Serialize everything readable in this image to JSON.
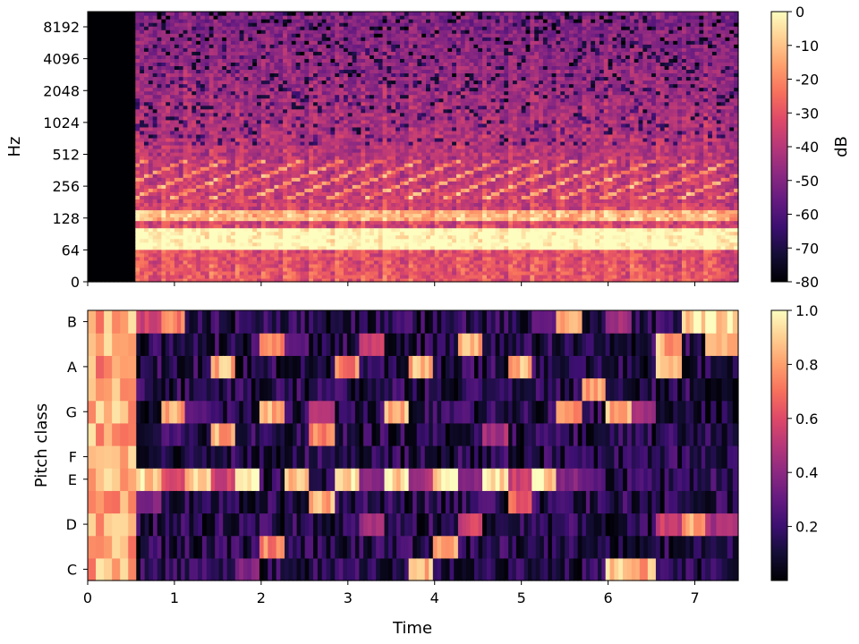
{
  "chart_data": [
    {
      "type": "heatmap",
      "name": "spectrogram",
      "ylabel": "Hz",
      "yscale": "log",
      "yticks": [
        "0",
        "64",
        "128",
        "256",
        "512",
        "1024",
        "2048",
        "4096",
        "8192"
      ],
      "xrange": [
        0,
        7.5
      ],
      "colormap": "magma",
      "colorbar": {
        "label": "dB",
        "ticks": [
          "0",
          "-10",
          "-20",
          "-30",
          "-40",
          "-50",
          "-60",
          "-70",
          "-80"
        ],
        "range": [
          -80,
          0
        ]
      },
      "note_onsets_s": [
        0.56,
        0.85,
        1.12,
        1.42,
        1.7,
        1.98,
        2.27,
        2.55,
        2.85,
        3.13,
        3.42,
        3.7,
        3.98,
        4.27,
        4.55,
        4.85,
        5.12,
        5.4,
        5.7,
        5.97,
        6.27,
        6.55,
        6.85,
        7.12
      ],
      "silence_until_s": 0.56
    },
    {
      "type": "heatmap",
      "name": "chromagram",
      "xlabel": "Time",
      "ylabel": "Pitch class",
      "yticks": [
        "C",
        "D",
        "E",
        "F",
        "G",
        "A",
        "B"
      ],
      "xticks": [
        "0",
        "1",
        "2",
        "3",
        "4",
        "5",
        "6",
        "7"
      ],
      "xrange": [
        0,
        7.5
      ],
      "pitch_classes": [
        "C",
        "C#",
        "D",
        "D#",
        "E",
        "F",
        "F#",
        "G",
        "G#",
        "A",
        "A#",
        "B"
      ],
      "colormap": "magma",
      "colorbar": {
        "ticks": [
          "1.0",
          "0.8",
          "0.6",
          "0.4",
          "0.2"
        ],
        "range": [
          0,
          1
        ]
      },
      "segments": [
        {
          "t0": 0.56,
          "t1": 0.85,
          "peaks": {
            "E": 1.0,
            "D#": 0.4,
            "B": 0.6
          }
        },
        {
          "t0": 0.85,
          "t1": 1.12,
          "peaks": {
            "G": 0.9,
            "E": 0.6,
            "B": 0.8
          }
        },
        {
          "t0": 1.12,
          "t1": 1.42,
          "peaks": {
            "E": 1.0,
            "G": 0.3
          }
        },
        {
          "t0": 1.42,
          "t1": 1.7,
          "peaks": {
            "A": 0.9,
            "F#": 0.9,
            "E": 0.6
          }
        },
        {
          "t0": 1.7,
          "t1": 1.98,
          "peaks": {
            "E": 1.0,
            "C": 0.4
          }
        },
        {
          "t0": 1.98,
          "t1": 2.27,
          "peaks": {
            "G": 0.9,
            "A#": 0.8,
            "C#": 0.8
          }
        },
        {
          "t0": 2.27,
          "t1": 2.55,
          "peaks": {
            "E": 1.0,
            "A#": 0.3
          }
        },
        {
          "t0": 2.55,
          "t1": 2.85,
          "peaks": {
            "F#": 0.8,
            "D#": 0.9,
            "G": 0.5
          }
        },
        {
          "t0": 2.85,
          "t1": 3.13,
          "peaks": {
            "E": 1.0,
            "A": 0.8
          }
        },
        {
          "t0": 3.13,
          "t1": 3.42,
          "peaks": {
            "A#": 0.6,
            "D": 0.5,
            "E": 0.4
          }
        },
        {
          "t0": 3.42,
          "t1": 3.7,
          "peaks": {
            "E": 1.0,
            "G": 0.9
          }
        },
        {
          "t0": 3.7,
          "t1": 3.98,
          "peaks": {
            "A": 0.9,
            "C": 0.9,
            "E": 0.5
          }
        },
        {
          "t0": 3.98,
          "t1": 4.27,
          "peaks": {
            "E": 1.0,
            "C#": 0.9
          }
        },
        {
          "t0": 4.27,
          "t1": 4.55,
          "peaks": {
            "A#": 0.9,
            "D": 0.6,
            "E": 0.4
          }
        },
        {
          "t0": 4.55,
          "t1": 4.85,
          "peaks": {
            "E": 1.0,
            "F#": 0.5
          }
        },
        {
          "t0": 4.85,
          "t1": 5.12,
          "peaks": {
            "A": 0.9,
            "D#": 0.7,
            "E": 0.6
          }
        },
        {
          "t0": 5.12,
          "t1": 5.4,
          "peaks": {
            "E": 1.0,
            "B": 0.3
          }
        },
        {
          "t0": 5.4,
          "t1": 5.7,
          "peaks": {
            "G": 0.8,
            "B": 0.9,
            "E": 0.4
          }
        },
        {
          "t0": 5.7,
          "t1": 5.97,
          "peaks": {
            "G#": 0.9,
            "E": 0.3
          }
        },
        {
          "t0": 5.97,
          "t1": 6.27,
          "peaks": {
            "C": 1.0,
            "G": 0.9,
            "B": 0.5
          }
        },
        {
          "t0": 6.27,
          "t1": 6.55,
          "peaks": {
            "C": 0.9,
            "G": 0.5
          }
        },
        {
          "t0": 6.55,
          "t1": 6.85,
          "peaks": {
            "A": 0.9,
            "D": 0.6,
            "A#": 0.9
          }
        },
        {
          "t0": 6.85,
          "t1": 7.12,
          "peaks": {
            "B": 1.0,
            "D": 0.9
          }
        },
        {
          "t0": 7.12,
          "t1": 7.5,
          "peaks": {
            "B": 1.0,
            "A#": 0.9,
            "D": 0.5
          }
        }
      ]
    }
  ],
  "colors": {
    "colormap": "magma",
    "background": "#ffffff",
    "axis": "#000000"
  }
}
